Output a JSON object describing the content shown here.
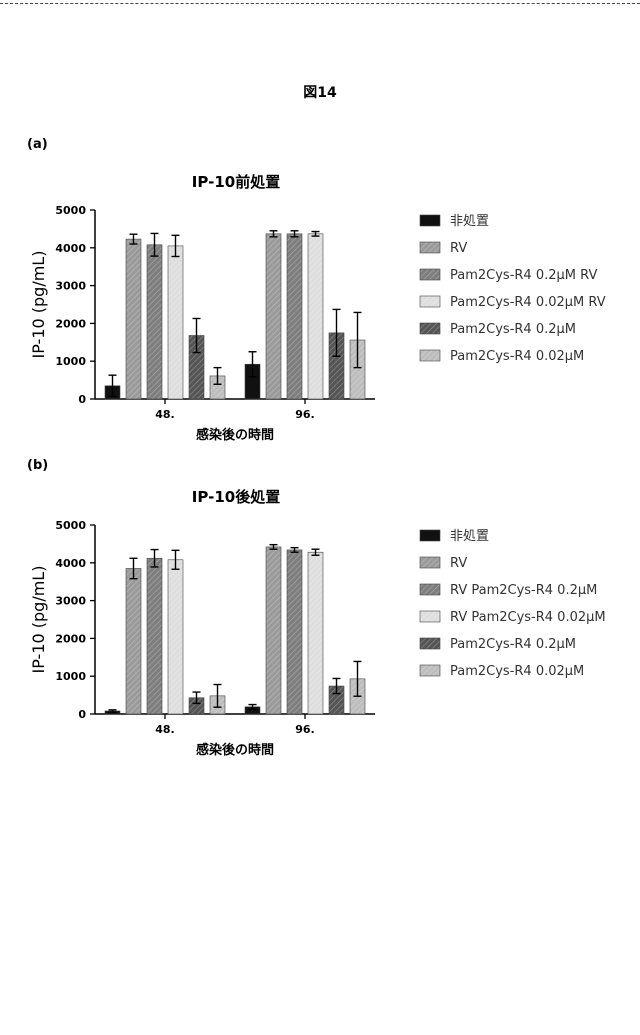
{
  "figure": {
    "title": "図14"
  },
  "palette": [
    "#111111",
    "#9a9a9a",
    "#7e7e7e",
    "#dedede",
    "#555555",
    "#bdbdbd"
  ],
  "chart_data": [
    {
      "panel": "(a)",
      "type": "bar",
      "title": "IP-10前処置",
      "ylabel": "IP-10 (pg/mL)",
      "xlabel": "感染後の時間",
      "ylim": [
        0,
        5000
      ],
      "yticks": [
        0,
        1000,
        2000,
        3000,
        4000,
        5000
      ],
      "categories": [
        "48.",
        "96."
      ],
      "legend_position": "right",
      "series": [
        {
          "name": "非処置",
          "values": [
            350,
            920
          ],
          "errors": [
            280,
            330
          ]
        },
        {
          "name": "RV",
          "values": [
            4230,
            4370
          ],
          "errors": [
            130,
            80
          ]
        },
        {
          "name": "Pam2Cys-R4 0.2μM RV",
          "values": [
            4080,
            4370
          ],
          "errors": [
            300,
            80
          ]
        },
        {
          "name": "Pam2Cys-R4 0.02μM RV",
          "values": [
            4050,
            4370
          ],
          "errors": [
            280,
            60
          ]
        },
        {
          "name": "Pam2Cys-R4 0.2μM",
          "values": [
            1680,
            1750
          ],
          "errors": [
            450,
            620
          ]
        },
        {
          "name": "Pam2Cys-R4 0.02μM",
          "values": [
            610,
            1560
          ],
          "errors": [
            220,
            730
          ]
        }
      ]
    },
    {
      "panel": "(b)",
      "type": "bar",
      "title": "IP-10後処置",
      "ylabel": "IP-10 (pg/mL)",
      "xlabel": "感染後の時間",
      "ylim": [
        0,
        5000
      ],
      "yticks": [
        0,
        1000,
        2000,
        3000,
        4000,
        5000
      ],
      "categories": [
        "48.",
        "96."
      ],
      "legend_position": "right",
      "series": [
        {
          "name": "非処置",
          "values": [
            80,
            190
          ],
          "errors": [
            30,
            60
          ]
        },
        {
          "name": "RV",
          "values": [
            3850,
            4420
          ],
          "errors": [
            270,
            60
          ]
        },
        {
          "name": "RV Pam2Cys-R4 0.2μM",
          "values": [
            4120,
            4340
          ],
          "errors": [
            230,
            60
          ]
        },
        {
          "name": "RV Pam2Cys-R4 0.02μM",
          "values": [
            4080,
            4280
          ],
          "errors": [
            250,
            80
          ]
        },
        {
          "name": "Pam2Cys-R4 0.2μM",
          "values": [
            430,
            740
          ],
          "errors": [
            150,
            200
          ]
        },
        {
          "name": "Pam2Cys-R4 0.02μM",
          "values": [
            480,
            930
          ],
          "errors": [
            300,
            460
          ]
        }
      ]
    }
  ]
}
